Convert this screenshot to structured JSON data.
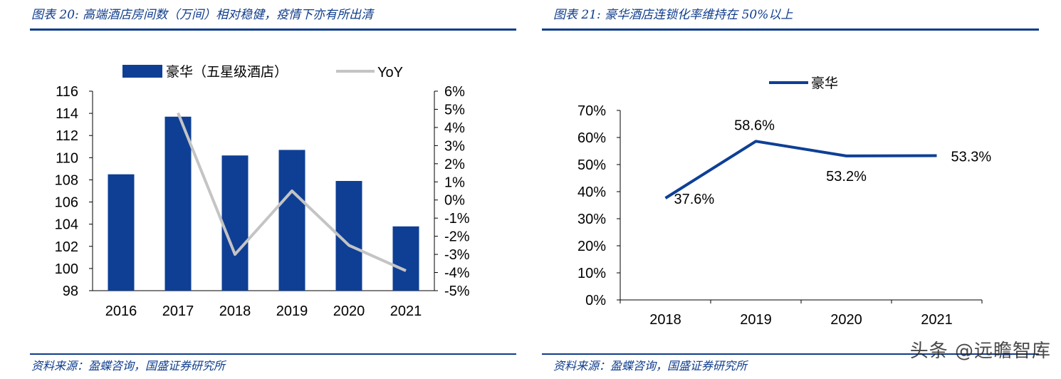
{
  "left": {
    "figure_title": "图表 20: 高端酒店房间数（万间）相对稳健，疫情下亦有所出清",
    "source": "资料来源：盈蝶咨询，国盛证券研究所"
  },
  "right": {
    "figure_title": "图表 21: 豪华酒店连锁化率维持在 50%以上",
    "source": "资料来源：盈蝶咨询，国盛证券研究所"
  },
  "watermark": "头条 @远瞻智库",
  "colors": {
    "bar": "#0e3f95",
    "yoy_line": "#c4c4c4",
    "title": "#0f3d8c"
  },
  "chart_data": [
    {
      "type": "bar+line",
      "categories": [
        "2016",
        "2017",
        "2018",
        "2019",
        "2020",
        "2021"
      ],
      "series": [
        {
          "name": "豪华（五星级酒店）",
          "kind": "bar",
          "axis": "left",
          "values": [
            108.5,
            113.7,
            110.2,
            110.7,
            107.9,
            103.8
          ]
        },
        {
          "name": "YoY",
          "kind": "line",
          "axis": "right",
          "values": [
            null,
            4.8,
            -3.0,
            0.5,
            -2.5,
            -3.9
          ]
        }
      ],
      "y_left": {
        "min": 98,
        "max": 116,
        "step": 2,
        "ticks": [
          "98",
          "100",
          "102",
          "104",
          "106",
          "108",
          "110",
          "112",
          "114",
          "116"
        ]
      },
      "y_right": {
        "min": -5,
        "max": 6,
        "step": 1,
        "ticks": [
          "-5%",
          "-4%",
          "-3%",
          "-2%",
          "-1%",
          "0%",
          "1%",
          "2%",
          "3%",
          "4%",
          "5%",
          "6%"
        ]
      },
      "legend_position": "top"
    },
    {
      "type": "line",
      "categories": [
        "2018",
        "2019",
        "2020",
        "2021"
      ],
      "series": [
        {
          "name": "豪华",
          "values": [
            37.6,
            58.6,
            53.2,
            53.3
          ],
          "labels": [
            "37.6%",
            "58.6%",
            "53.2%",
            "53.3%"
          ]
        }
      ],
      "y": {
        "min": 0,
        "max": 70,
        "step": 10,
        "ticks": [
          "0%",
          "10%",
          "20%",
          "30%",
          "40%",
          "50%",
          "60%",
          "70%"
        ]
      },
      "legend_position": "top"
    }
  ]
}
